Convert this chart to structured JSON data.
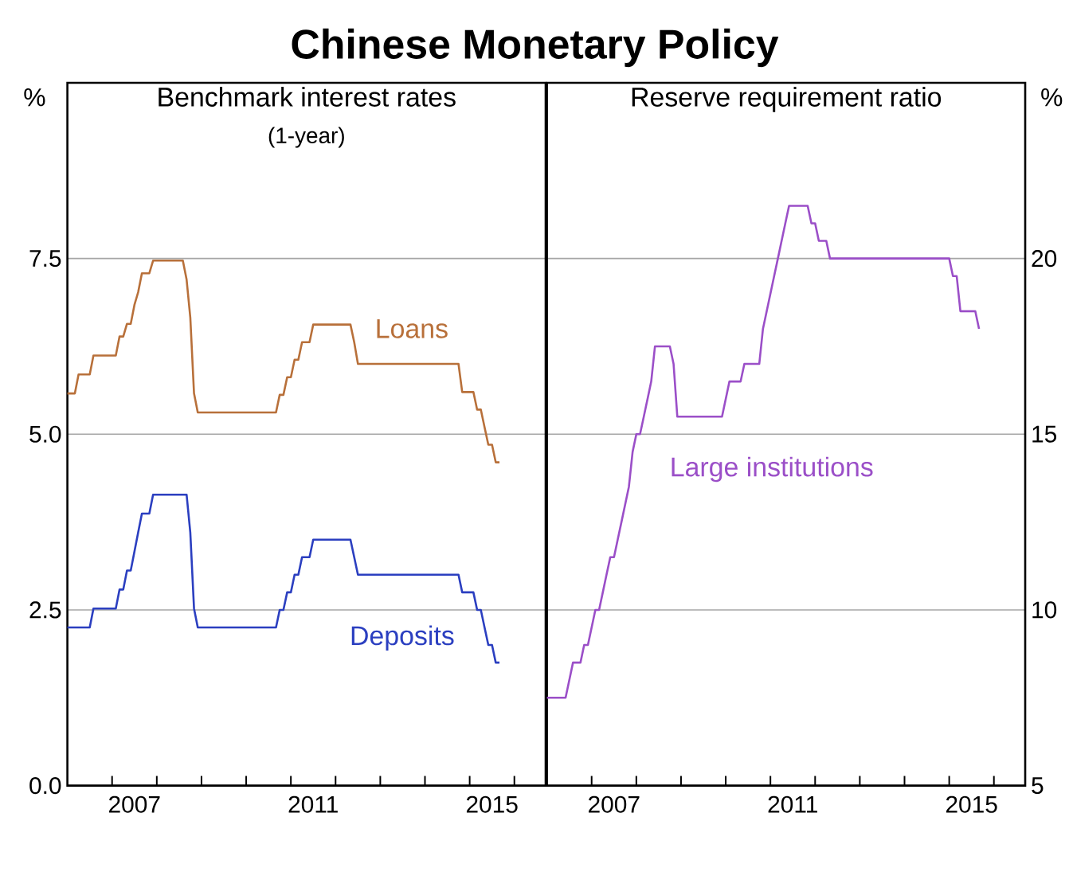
{
  "chart_data": [
    {
      "type": "other",
      "title": "Chinese Monetary Policy"
    },
    {
      "type": "line",
      "title": "Benchmark interest rates",
      "subtitle": "(1-year)",
      "ylabel": "%",
      "grid": "y",
      "xlim": [
        2006,
        2016.7
      ],
      "xticks": [
        {
          "value": 2007,
          "label": null
        },
        {
          "value": 2008,
          "label": null
        },
        {
          "value": 2009,
          "label": null
        },
        {
          "value": 2010,
          "label": null
        },
        {
          "value": 2011,
          "label": null
        },
        {
          "value": 2012,
          "label": null
        },
        {
          "value": 2013,
          "label": null
        },
        {
          "value": 2014,
          "label": null
        },
        {
          "value": 2015,
          "label": null
        },
        {
          "value": 2016,
          "label": null
        },
        {
          "value": 2007.5,
          "label": "2007"
        },
        {
          "value": 2011.5,
          "label": "2011"
        },
        {
          "value": 2015.5,
          "label": "2015"
        }
      ],
      "ylim": [
        0,
        10
      ],
      "yticks": [
        {
          "value": 0,
          "label": "0.0"
        },
        {
          "value": 2.5,
          "label": "2.5"
        },
        {
          "value": 5,
          "label": "5.0"
        },
        {
          "value": 7.5,
          "label": "7.5"
        }
      ],
      "series": [
        {
          "name": "Loans",
          "color": "#b8703a",
          "x": [
            2006.0,
            2006.167,
            2006.25,
            2006.5,
            2006.583,
            2007.083,
            2007.167,
            2007.25,
            2007.333,
            2007.417,
            2007.5,
            2007.583,
            2007.667,
            2007.833,
            2007.917,
            2008.583,
            2008.667,
            2008.75,
            2008.833,
            2008.917,
            2010.667,
            2010.75,
            2010.833,
            2010.917,
            2011.0,
            2011.083,
            2011.167,
            2011.25,
            2011.417,
            2011.5,
            2012.333,
            2012.417,
            2012.5,
            2014.75,
            2014.833,
            2015.083,
            2015.167,
            2015.25,
            2015.333,
            2015.417,
            2015.5,
            2015.583,
            2015.667
          ],
          "values": [
            5.58,
            5.58,
            5.85,
            5.85,
            6.12,
            6.12,
            6.39,
            6.39,
            6.57,
            6.57,
            6.84,
            7.02,
            7.29,
            7.29,
            7.47,
            7.47,
            7.2,
            6.66,
            5.58,
            5.31,
            5.31,
            5.56,
            5.56,
            5.81,
            5.81,
            6.06,
            6.06,
            6.31,
            6.31,
            6.56,
            6.56,
            6.31,
            6.0,
            6.0,
            5.6,
            5.6,
            5.35,
            5.35,
            5.1,
            4.85,
            4.85,
            4.6,
            4.6
          ]
        },
        {
          "name": "Deposits",
          "color": "#2b3fc0",
          "x": [
            2006.0,
            2006.5,
            2006.583,
            2007.083,
            2007.167,
            2007.25,
            2007.333,
            2007.417,
            2007.5,
            2007.583,
            2007.667,
            2007.833,
            2007.917,
            2008.667,
            2008.75,
            2008.833,
            2008.917,
            2010.667,
            2010.75,
            2010.833,
            2010.917,
            2011.0,
            2011.083,
            2011.167,
            2011.25,
            2011.417,
            2011.5,
            2012.333,
            2012.417,
            2012.5,
            2014.75,
            2014.833,
            2015.083,
            2015.167,
            2015.25,
            2015.333,
            2015.417,
            2015.5,
            2015.583,
            2015.667
          ],
          "values": [
            2.25,
            2.25,
            2.52,
            2.52,
            2.79,
            2.79,
            3.06,
            3.06,
            3.33,
            3.6,
            3.87,
            3.87,
            4.14,
            4.14,
            3.6,
            2.52,
            2.25,
            2.25,
            2.5,
            2.5,
            2.75,
            2.75,
            3.0,
            3.0,
            3.25,
            3.25,
            3.5,
            3.5,
            3.25,
            3.0,
            3.0,
            2.75,
            2.75,
            2.5,
            2.5,
            2.25,
            2.0,
            2.0,
            1.75,
            1.75
          ]
        }
      ]
    },
    {
      "type": "line",
      "title": "Reserve requirement ratio",
      "y2label": "%",
      "grid": "y",
      "xlim": [
        2006,
        2016.7
      ],
      "xticks": [
        {
          "value": 2007,
          "label": null
        },
        {
          "value": 2008,
          "label": null
        },
        {
          "value": 2009,
          "label": null
        },
        {
          "value": 2010,
          "label": null
        },
        {
          "value": 2011,
          "label": null
        },
        {
          "value": 2012,
          "label": null
        },
        {
          "value": 2013,
          "label": null
        },
        {
          "value": 2014,
          "label": null
        },
        {
          "value": 2015,
          "label": null
        },
        {
          "value": 2016,
          "label": null
        },
        {
          "value": 2007.5,
          "label": "2007"
        },
        {
          "value": 2011.5,
          "label": "2011"
        },
        {
          "value": 2015.5,
          "label": "2015"
        }
      ],
      "y2lim": [
        5,
        25
      ],
      "y2ticks": [
        5,
        10,
        15,
        20
      ],
      "series": [
        {
          "name": "Large institutions",
          "color": "#9b4fc8",
          "axis": "y2",
          "x": [
            2006.0,
            2006.417,
            2006.5,
            2006.583,
            2006.75,
            2006.833,
            2006.917,
            2007.0,
            2007.083,
            2007.167,
            2007.25,
            2007.333,
            2007.417,
            2007.5,
            2007.583,
            2007.667,
            2007.75,
            2007.833,
            2007.917,
            2008.0,
            2008.083,
            2008.167,
            2008.25,
            2008.333,
            2008.417,
            2008.75,
            2008.833,
            2008.917,
            2009.917,
            2010.0,
            2010.083,
            2010.333,
            2010.417,
            2010.75,
            2010.833,
            2010.917,
            2011.0,
            2011.083,
            2011.167,
            2011.25,
            2011.333,
            2011.417,
            2011.833,
            2011.917,
            2012.0,
            2012.083,
            2012.25,
            2012.333,
            2015.0,
            2015.083,
            2015.167,
            2015.25,
            2015.583,
            2015.667
          ],
          "values": [
            7.5,
            7.5,
            8.0,
            8.5,
            8.5,
            9.0,
            9.0,
            9.5,
            10.0,
            10.0,
            10.5,
            11.0,
            11.5,
            11.5,
            12.0,
            12.5,
            13.0,
            13.5,
            14.5,
            15.0,
            15.0,
            15.5,
            16.0,
            16.5,
            17.5,
            17.5,
            17.0,
            15.5,
            15.5,
            16.0,
            16.5,
            16.5,
            17.0,
            17.0,
            18.0,
            18.5,
            19.0,
            19.5,
            20.0,
            20.5,
            21.0,
            21.5,
            21.5,
            21.0,
            21.0,
            20.5,
            20.5,
            20.0,
            20.0,
            19.5,
            19.5,
            18.5,
            18.5,
            18.0
          ]
        }
      ]
    }
  ]
}
